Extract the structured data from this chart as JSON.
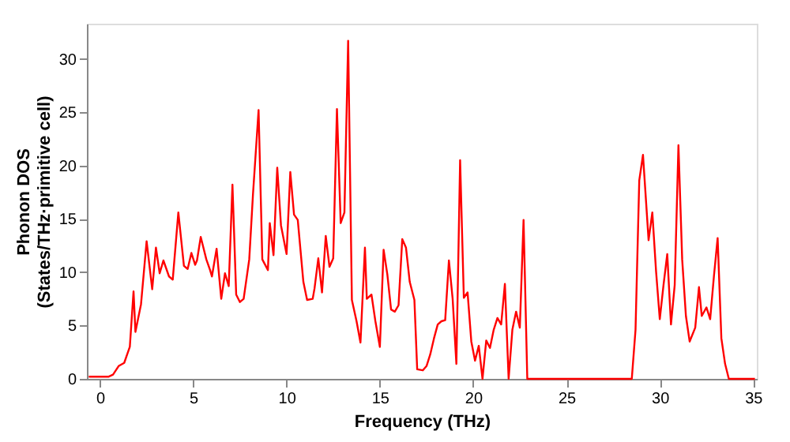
{
  "chart_data": {
    "type": "line",
    "xlabel": "Frequency (THz)",
    "ylabel": "Phonon DOS\n(States/THz·primitive cell)",
    "x": [
      -0.6,
      0.45,
      0.7,
      1.0,
      1.3,
      1.5,
      1.6,
      1.8,
      1.9,
      2.2,
      2.5,
      2.8,
      3.0,
      3.2,
      3.4,
      3.7,
      3.9,
      4.2,
      4.5,
      4.7,
      4.9,
      5.1,
      5.2,
      5.4,
      5.7,
      5.9,
      6.0,
      6.25,
      6.5,
      6.7,
      6.9,
      7.1,
      7.3,
      7.5,
      7.7,
      8.0,
      8.2,
      8.5,
      8.7,
      9.0,
      9.1,
      9.3,
      9.5,
      9.7,
      10.0,
      10.2,
      10.4,
      10.6,
      10.9,
      11.1,
      11.4,
      11.5,
      11.7,
      11.9,
      12.1,
      12.3,
      12.5,
      12.7,
      12.9,
      13.1,
      13.3,
      13.5,
      13.75,
      13.96,
      14.2,
      14.3,
      14.55,
      14.76,
      15.0,
      15.2,
      15.4,
      15.6,
      15.8,
      16.0,
      16.2,
      16.4,
      16.6,
      16.85,
      17.0,
      17.3,
      17.5,
      17.7,
      17.9,
      18.1,
      18.3,
      18.5,
      18.7,
      18.9,
      19.1,
      19.3,
      19.5,
      19.7,
      19.9,
      20.1,
      20.3,
      20.5,
      20.7,
      20.9,
      21.1,
      21.3,
      21.5,
      21.7,
      21.9,
      22.1,
      22.3,
      22.5,
      22.7,
      22.9,
      23.0,
      28.5,
      28.7,
      28.9,
      29.1,
      29.4,
      29.6,
      29.8,
      30.0,
      30.2,
      30.4,
      30.6,
      30.8,
      31.0,
      31.2,
      31.4,
      31.6,
      31.9,
      32.1,
      32.25,
      32.5,
      32.7,
      32.9,
      33.1,
      33.3,
      33.5,
      33.7,
      35.1
    ],
    "series": [
      {
        "color": "#ff0000",
        "values": [
          0.2,
          0.2,
          0.4,
          1.2,
          1.5,
          2.5,
          3,
          8.2,
          4.4,
          7,
          12.9,
          8.4,
          12.3,
          9.9,
          11.1,
          9.6,
          9.3,
          15.6,
          10.6,
          10.3,
          11.8,
          10.7,
          11.1,
          13.3,
          11.2,
          10.2,
          9.6,
          12.2,
          7.5,
          9.9,
          8.7,
          18.2,
          7.9,
          7.2,
          7.5,
          11.2,
          17.3,
          25.2,
          11.2,
          10.2,
          14.6,
          11.6,
          19.8,
          14.4,
          11.7,
          19.4,
          15.4,
          14.9,
          9.1,
          7.4,
          7.5,
          8.5,
          11.3,
          8.1,
          13.4,
          10.5,
          11.3,
          25.3,
          14.6,
          15.6,
          31.7,
          7.4,
          5.4,
          3.4,
          12.3,
          7.5,
          7.9,
          5.4,
          3.0,
          12.1,
          9.8,
          6.5,
          6.3,
          6.9,
          13.1,
          12.3,
          9.1,
          7.4,
          0.9,
          0.8,
          1.2,
          2.3,
          3.8,
          5.1,
          5.4,
          5.5,
          11.1,
          7.5,
          1.4,
          20.5,
          7.6,
          8.1,
          3.5,
          1.7,
          3.1,
          0,
          3.6,
          2.9,
          4.6,
          5.7,
          5.1,
          8.9,
          0,
          4.6,
          6.3,
          4.8,
          14.9,
          0,
          0,
          0,
          4.6,
          18.6,
          21.0,
          13.0,
          15.6,
          10.1,
          5.6,
          8.8,
          11.7,
          5.1,
          8.8,
          21.9,
          11.2,
          5.9,
          3.5,
          4.8,
          8.6,
          5.9,
          6.7,
          5.6,
          9.6,
          13.2,
          3.8,
          1.4,
          0,
          0
        ]
      }
    ],
    "xlim": [
      -0.7,
      35.2
    ],
    "ylim": [
      0,
      33.3
    ],
    "xticks": [
      0,
      5,
      10,
      15,
      20,
      25,
      30,
      35
    ],
    "yticks": [
      0,
      5,
      10,
      15,
      20,
      25,
      30
    ],
    "grid": false,
    "legend": false,
    "marker": "none",
    "line_style": "solid"
  }
}
